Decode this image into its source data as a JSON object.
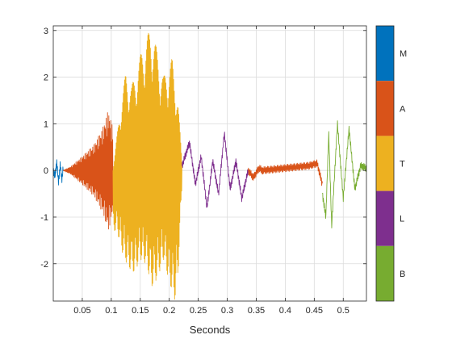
{
  "chart_data": {
    "type": "line",
    "title": "",
    "xlabel": "Seconds",
    "ylabel": "",
    "xlim": [
      0.0,
      0.54
    ],
    "ylim": [
      -2.8,
      3.1
    ],
    "grid": true,
    "xticks": [
      0.05,
      0.1,
      0.15,
      0.2,
      0.25,
      0.3,
      0.35,
      0.4,
      0.45,
      0.5
    ],
    "xtick_labels": [
      "0.05",
      "0.1",
      "0.15",
      "0.2",
      "0.25",
      "0.3",
      "0.35",
      "0.4",
      "0.45",
      "0.5"
    ],
    "yticks": [
      -2,
      -1,
      0,
      1,
      2,
      3
    ],
    "ytick_labels": [
      "-2",
      "-1",
      "0",
      "1",
      "2",
      "3"
    ],
    "series": [
      {
        "label": "M",
        "color": "#0072BD",
        "x_range": [
          0.0,
          0.017
        ],
        "points": [
          [
            0.0,
            0.0
          ],
          [
            0.003,
            -0.12
          ],
          [
            0.006,
            0.18
          ],
          [
            0.009,
            -0.25
          ],
          [
            0.012,
            0.12
          ],
          [
            0.015,
            -0.2
          ],
          [
            0.017,
            0.05
          ]
        ]
      },
      {
        "label": "A",
        "color": "#D95319",
        "x_range": [
          0.017,
          0.103
        ],
        "points": [
          [
            0.017,
            0.0
          ],
          [
            0.03,
            0.08
          ],
          [
            0.05,
            0.3
          ],
          [
            0.07,
            0.55
          ],
          [
            0.085,
            0.9
          ],
          [
            0.095,
            1.3
          ],
          [
            0.103,
            0.9
          ]
        ],
        "note": "dense oscillation with envelope values above"
      },
      {
        "label": "T",
        "color": "#EDB120",
        "x_range": [
          0.103,
          0.222
        ],
        "points": [
          [
            0.103,
            0.0
          ],
          [
            0.115,
            1.3
          ],
          [
            0.125,
            2.1
          ],
          [
            0.135,
            1.8
          ],
          [
            0.145,
            2.2
          ],
          [
            0.155,
            2.7
          ],
          [
            0.17,
            3.1
          ],
          [
            0.18,
            2.5
          ],
          [
            0.19,
            2.0
          ],
          [
            0.205,
            2.4
          ],
          [
            0.215,
            1.5
          ],
          [
            0.222,
            0.2
          ]
        ],
        "lows": [
          [
            0.11,
            -1.3
          ],
          [
            0.12,
            -1.8
          ],
          [
            0.13,
            -2.1
          ],
          [
            0.14,
            -2.2
          ],
          [
            0.15,
            -1.9
          ],
          [
            0.16,
            -2.0
          ],
          [
            0.17,
            -2.5
          ],
          [
            0.18,
            -2.3
          ],
          [
            0.19,
            -1.9
          ],
          [
            0.2,
            -2.4
          ],
          [
            0.21,
            -2.8
          ],
          [
            0.215,
            -2.3
          ],
          [
            0.222,
            -0.3
          ]
        ]
      },
      {
        "label": "L",
        "color": "#7E2F8E",
        "x_range": [
          0.222,
          0.336
        ],
        "points": [
          [
            0.222,
            0.1
          ],
          [
            0.235,
            0.6
          ],
          [
            0.245,
            -0.3
          ],
          [
            0.255,
            0.3
          ],
          [
            0.265,
            -0.8
          ],
          [
            0.275,
            0.2
          ],
          [
            0.285,
            -0.5
          ],
          [
            0.295,
            0.8
          ],
          [
            0.305,
            -0.4
          ],
          [
            0.315,
            0.2
          ],
          [
            0.325,
            -0.6
          ],
          [
            0.336,
            0.0
          ]
        ]
      },
      {
        "label": "A",
        "color": "#D95319",
        "x_range": [
          0.336,
          0.36
        ],
        "points": [
          [
            0.336,
            0.0
          ],
          [
            0.345,
            -0.15
          ],
          [
            0.355,
            0.05
          ],
          [
            0.36,
            0.0
          ]
        ]
      },
      {
        "label": "A",
        "color": "#D95319",
        "x_range": [
          0.36,
          0.464
        ],
        "points": [
          [
            0.36,
            0.0
          ],
          [
            0.4,
            0.05
          ],
          [
            0.44,
            0.1
          ],
          [
            0.455,
            0.15
          ],
          [
            0.464,
            -0.3
          ]
        ]
      },
      {
        "label": "B",
        "color": "#77AC30",
        "x_range": [
          0.464,
          0.54
        ],
        "points": [
          [
            0.464,
            -0.5
          ],
          [
            0.47,
            -1.0
          ],
          [
            0.475,
            0.8
          ],
          [
            0.48,
            -1.2
          ],
          [
            0.49,
            1.0
          ],
          [
            0.5,
            -0.6
          ],
          [
            0.51,
            0.9
          ],
          [
            0.52,
            -0.4
          ],
          [
            0.53,
            0.1
          ],
          [
            0.54,
            0.05
          ]
        ]
      }
    ],
    "colorbar": {
      "labels": [
        "M",
        "A",
        "T",
        "L",
        "B"
      ],
      "colors": [
        "#0072BD",
        "#D95319",
        "#EDB120",
        "#7E2F8E",
        "#77AC30"
      ]
    }
  }
}
